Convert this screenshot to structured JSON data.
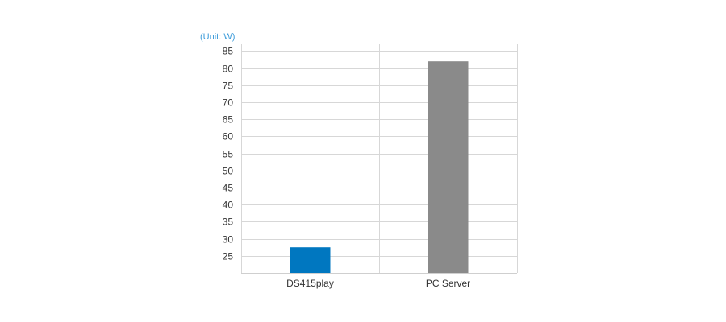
{
  "chart_data": {
    "type": "bar",
    "unit_label": "(Unit: W)",
    "categories": [
      "DS415play",
      "PC Server"
    ],
    "values": [
      27.5,
      82
    ],
    "bar_colors": [
      "#0077c0",
      "#8a8a8a"
    ],
    "yticks": [
      25,
      30,
      35,
      40,
      45,
      50,
      55,
      60,
      65,
      70,
      75,
      80,
      85
    ],
    "ylim": [
      20,
      87
    ],
    "grid": true,
    "legend": "none"
  },
  "colors": {
    "unit_label": "#3a9ad9",
    "grid": "#d7d7d7",
    "axis": "#cfcfcf",
    "text": "#333333"
  }
}
